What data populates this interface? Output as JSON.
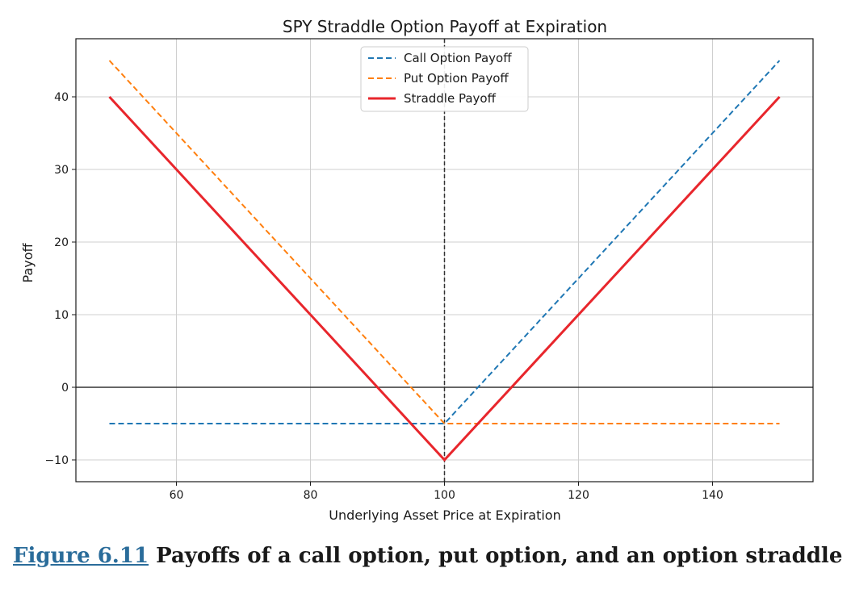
{
  "chart_data": {
    "type": "line",
    "title": "SPY Straddle Option Payoff at Expiration",
    "xlabel": "Underlying Asset Price at Expiration",
    "ylabel": "Payoff",
    "xlim": [
      45,
      155
    ],
    "ylim": [
      -13,
      48
    ],
    "xticks": [
      60,
      80,
      100,
      120,
      140
    ],
    "yticks": [
      -10,
      0,
      10,
      20,
      30,
      40
    ],
    "ytick_labels": [
      "−10",
      "0",
      "10",
      "20",
      "30",
      "40"
    ],
    "grid": true,
    "legend_position": "top-center",
    "reference_lines": {
      "horizontal_zero": {
        "y": 0,
        "color": "#333333"
      },
      "vertical_strike": {
        "x": 100,
        "color": "#333333",
        "style": "dashed"
      }
    },
    "series": [
      {
        "name": "Call Option Payoff",
        "color": "#1f77b4",
        "style": "dashed",
        "x": [
          50,
          100,
          150
        ],
        "y": [
          -5,
          -5,
          45
        ]
      },
      {
        "name": "Put Option Payoff",
        "color": "#ff7f0e",
        "style": "dashed",
        "x": [
          50,
          100,
          150
        ],
        "y": [
          45,
          -5,
          -5
        ]
      },
      {
        "name": "Straddle Payoff",
        "color": "#e8262c",
        "style": "solid",
        "x": [
          50,
          100,
          150
        ],
        "y": [
          40,
          -10,
          40
        ]
      }
    ]
  },
  "caption": {
    "figure_label": "Figure 6.11",
    "text": " Payoffs of a call option, put option, and an option straddle"
  }
}
